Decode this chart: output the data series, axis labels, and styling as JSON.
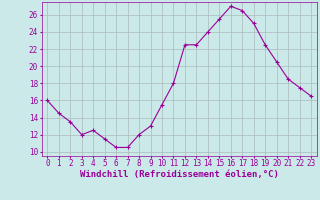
{
  "x": [
    0,
    1,
    2,
    3,
    4,
    5,
    6,
    7,
    8,
    9,
    10,
    11,
    12,
    13,
    14,
    15,
    16,
    17,
    18,
    19,
    20,
    21,
    22,
    23
  ],
  "y": [
    16,
    14.5,
    13.5,
    12,
    12.5,
    11.5,
    10.5,
    10.5,
    12,
    13,
    15.5,
    18,
    22.5,
    22.5,
    24,
    25.5,
    27,
    26.5,
    25,
    22.5,
    20.5,
    18.5,
    17.5,
    16.5
  ],
  "line_color": "#990099",
  "marker": "+",
  "marker_size": 3,
  "marker_lw": 0.8,
  "bg_color": "#cce9e9",
  "grid_color": "#aabbbb",
  "xlabel": "Windchill (Refroidissement éolien,°C)",
  "xlabel_color": "#990099",
  "yticks": [
    10,
    12,
    14,
    16,
    18,
    20,
    22,
    24,
    26
  ],
  "ylim": [
    9.5,
    27.5
  ],
  "xlim": [
    -0.5,
    23.5
  ],
  "xtick_labels": [
    "0",
    "1",
    "2",
    "3",
    "4",
    "5",
    "6",
    "7",
    "8",
    "9",
    "10",
    "11",
    "12",
    "13",
    "14",
    "15",
    "16",
    "17",
    "18",
    "19",
    "20",
    "21",
    "22",
    "23"
  ],
  "tick_color": "#990099",
  "axis_color": "#990099",
  "line_width": 0.8,
  "tick_fontsize": 5.5,
  "xlabel_fontsize": 6.5
}
